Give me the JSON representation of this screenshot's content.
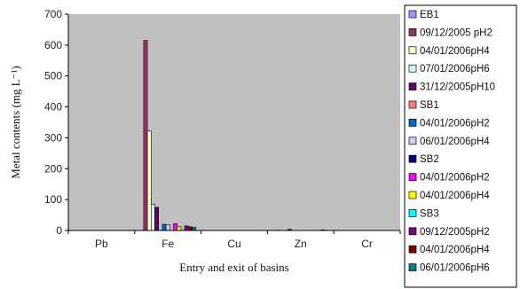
{
  "chart_data": {
    "type": "bar",
    "xlabel": "Entry and exit of basins",
    "ylabel": "Metal contents (mg L⁻¹)",
    "ylim": [
      0,
      700
    ],
    "yticks": [
      0,
      100,
      200,
      300,
      400,
      500,
      600,
      700
    ],
    "grid": false,
    "legend_position": "right",
    "plot_background": "#c0c0c0",
    "categories": [
      "Pb",
      "Fe",
      "Cu",
      "Zn",
      "Cr"
    ],
    "series": [
      {
        "name": "EB1",
        "color": "#9999ff",
        "values": [
          0,
          0,
          0,
          0,
          0
        ]
      },
      {
        "name": "09/12/2005 pH2",
        "color": "#993366",
        "values": [
          0,
          615,
          0,
          1,
          0
        ]
      },
      {
        "name": "04/01/2006pH4",
        "color": "#ffffcc",
        "values": [
          0,
          322,
          0,
          0,
          0
        ]
      },
      {
        "name": "07/01/2006pH6",
        "color": "#ccffff",
        "values": [
          0,
          85,
          0,
          0,
          0
        ]
      },
      {
        "name": "31/12/2005pH10",
        "color": "#660066",
        "values": [
          0,
          75,
          0,
          4,
          0
        ]
      },
      {
        "name": "SB1",
        "color": "#ff8080",
        "values": [
          0,
          0,
          0,
          0,
          0
        ]
      },
      {
        "name": "04/01/2006pH2",
        "color": "#0066cc",
        "values": [
          0,
          20,
          0,
          0,
          0
        ]
      },
      {
        "name": "06/01/2006pH4",
        "color": "#ccccff",
        "values": [
          0,
          18,
          0,
          0,
          0
        ]
      },
      {
        "name": "SB2",
        "color": "#000080",
        "values": [
          0,
          0,
          0,
          0,
          0
        ]
      },
      {
        "name": "04/01/2006pH2",
        "color": "#ff00ff",
        "values": [
          0,
          22,
          0,
          0,
          0
        ]
      },
      {
        "name": "04/01/2006pH4",
        "color": "#ffff00",
        "values": [
          0,
          12,
          0,
          0,
          0
        ]
      },
      {
        "name": "SB3",
        "color": "#00ffff",
        "values": [
          0,
          0,
          0,
          0,
          0
        ]
      },
      {
        "name": "09/12/2005pH2",
        "color": "#800080",
        "values": [
          0,
          15,
          0,
          0,
          0
        ]
      },
      {
        "name": "04/01/2006pH4",
        "color": "#800000",
        "values": [
          0,
          12,
          0,
          2,
          0
        ]
      },
      {
        "name": "06/01/2006pH6",
        "color": "#008080",
        "values": [
          0,
          10,
          0,
          0,
          0
        ]
      }
    ]
  }
}
